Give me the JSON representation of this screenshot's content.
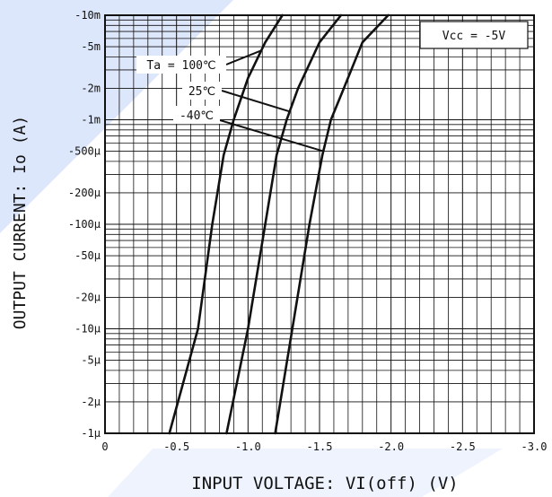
{
  "colors": {
    "background": "#ffffff",
    "decor": "#dde7fb",
    "ink": "#111111"
  },
  "chart_data": {
    "type": "line",
    "xlabel": "INPUT VOLTAGE: VI(off)  (V)",
    "ylabel": "OUTPUT CURRENT: Io  (A)",
    "x_scale": "linear",
    "y_scale": "log",
    "xlim": [
      0,
      -3.0
    ],
    "ylim": [
      -1e-06,
      -0.01
    ],
    "x_ticks": [
      {
        "value": 0,
        "label": "0"
      },
      {
        "value": -0.5,
        "label": "-0.5"
      },
      {
        "value": -1.0,
        "label": "-1.0"
      },
      {
        "value": -1.5,
        "label": "-1.5"
      },
      {
        "value": -2.0,
        "label": "-2.0"
      },
      {
        "value": -2.5,
        "label": "-2.5"
      },
      {
        "value": -3.0,
        "label": "-3.0"
      }
    ],
    "y_ticks": [
      {
        "value": -0.01,
        "label": "-10m"
      },
      {
        "value": -0.005,
        "label": "-5m"
      },
      {
        "value": -0.002,
        "label": "-2m"
      },
      {
        "value": -0.001,
        "label": "-1m"
      },
      {
        "value": -0.0005,
        "label": "-500μ"
      },
      {
        "value": -0.0002,
        "label": "-200μ"
      },
      {
        "value": -0.0001,
        "label": "-100μ"
      },
      {
        "value": -5e-05,
        "label": "-50μ"
      },
      {
        "value": -2e-05,
        "label": "-20μ"
      },
      {
        "value": -1e-05,
        "label": "-10μ"
      },
      {
        "value": -5e-06,
        "label": "-5μ"
      },
      {
        "value": -2e-06,
        "label": "-2μ"
      },
      {
        "value": -1e-06,
        "label": "-1μ"
      }
    ],
    "grid": true,
    "legend_box": "Vcc = -5V",
    "series": [
      {
        "name": "Ta = 100℃",
        "points": [
          [
            -0.45,
            -1e-06
          ],
          [
            -0.65,
            -1e-05
          ],
          [
            -0.75,
            -0.0001
          ],
          [
            -0.83,
            -0.00046
          ],
          [
            -0.9,
            -0.001
          ],
          [
            -1.0,
            -0.0025
          ],
          [
            -1.12,
            -0.0055
          ],
          [
            -1.24,
            -0.01
          ]
        ]
      },
      {
        "name": "25℃",
        "points": [
          [
            -0.85,
            -1e-06
          ],
          [
            -1.0,
            -1e-05
          ],
          [
            -1.12,
            -0.0001
          ],
          [
            -1.2,
            -0.00046
          ],
          [
            -1.27,
            -0.001
          ],
          [
            -1.35,
            -0.002
          ],
          [
            -1.5,
            -0.0055
          ],
          [
            -1.65,
            -0.01
          ]
        ]
      },
      {
        "name": "-40℃",
        "points": [
          [
            -1.19,
            -1e-06
          ],
          [
            -1.31,
            -1e-05
          ],
          [
            -1.43,
            -0.0001
          ],
          [
            -1.52,
            -0.00046
          ],
          [
            -1.58,
            -0.001
          ],
          [
            -1.67,
            -0.002
          ],
          [
            -1.8,
            -0.0055
          ],
          [
            -1.98,
            -0.01
          ]
        ]
      }
    ],
    "annotations": [
      {
        "text": "Ta = 100℃",
        "series": 0
      },
      {
        "text": "25℃",
        "series": 1
      },
      {
        "text": "-40℃",
        "series": 2
      }
    ]
  }
}
